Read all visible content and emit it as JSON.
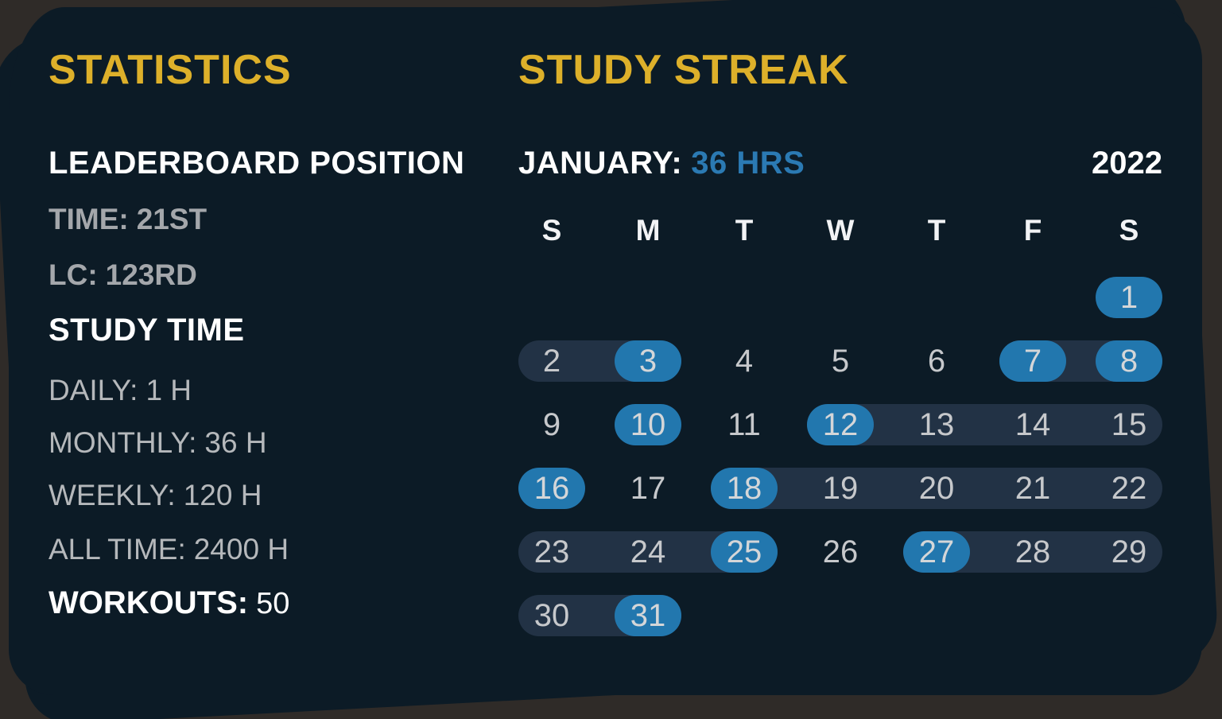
{
  "theme": {
    "page_bg": "#2f2b28",
    "card_bg": "#0c1b26",
    "accent_yellow": "#ddb02a",
    "accent_blue": "#2277ae",
    "accent_blue_text": "#2b7ab3",
    "streak_bar": "#223245",
    "text_white": "#ffffff",
    "text_gray_bold": "#a4a7ab",
    "text_gray": "#b5b8bb",
    "day_text": "#c6c8cb"
  },
  "statistics": {
    "title": "STATISTICS",
    "leaderboard_heading": "LEADERBOARD POSITION",
    "leaderboard_rows": [
      {
        "label": "TIME:",
        "value": "21ST"
      },
      {
        "label": "LC:",
        "value": "123RD"
      }
    ],
    "study_time_heading": "STUDY TIME",
    "study_time_rows": [
      {
        "label": "DAILY:",
        "value": "1 H"
      },
      {
        "label": "MONTHLY:",
        "value": "36 H"
      },
      {
        "label": "WEEKLY:",
        "value": "120 H"
      },
      {
        "label": "ALL TIME:",
        "value": "2400 H"
      }
    ],
    "workouts_label": "WORKOUTS:",
    "workouts_value": "50"
  },
  "study_streak": {
    "title": "STUDY STREAK",
    "month_label": "JANUARY:",
    "month_hours": "36 HRS",
    "year": "2022",
    "day_headers": [
      "S",
      "M",
      "T",
      "W",
      "T",
      "F",
      "S"
    ],
    "weeks": [
      [
        null,
        null,
        null,
        null,
        null,
        null,
        1
      ],
      [
        2,
        3,
        4,
        5,
        6,
        7,
        8
      ],
      [
        9,
        10,
        11,
        12,
        13,
        14,
        15
      ],
      [
        16,
        17,
        18,
        19,
        20,
        21,
        22
      ],
      [
        23,
        24,
        25,
        26,
        27,
        28,
        29
      ],
      [
        30,
        31,
        null,
        null,
        null,
        null,
        null
      ]
    ],
    "active_days": [
      1,
      3,
      7,
      8,
      10,
      12,
      16,
      18,
      25,
      27,
      31
    ],
    "streak_bars": [
      {
        "week": 1,
        "from": 1,
        "to": 2
      },
      {
        "week": 1,
        "from": 6,
        "to": 7
      },
      {
        "week": 2,
        "from": 4,
        "to": 7
      },
      {
        "week": 3,
        "from": 3,
        "to": 7
      },
      {
        "week": 4,
        "from": 1,
        "to": 3
      },
      {
        "week": 4,
        "from": 5,
        "to": 7
      },
      {
        "week": 5,
        "from": 1,
        "to": 2
      }
    ]
  }
}
